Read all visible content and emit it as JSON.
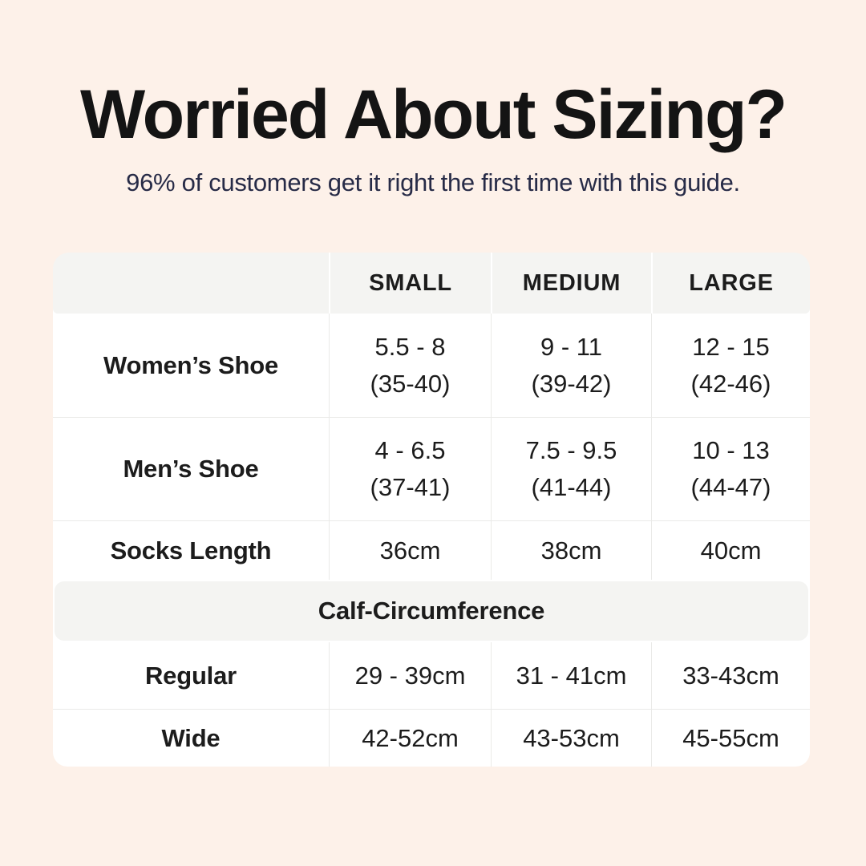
{
  "header": {
    "title": "Worried About Sizing?",
    "subtitle": "96% of customers get it right the first time with this guide."
  },
  "colors": {
    "background": "#fdf1e9",
    "card": "#ffffff",
    "header_band": "#f4f4f2",
    "divider": "#eaeae8",
    "title_text": "#141414",
    "subtitle_text": "#272b47",
    "table_text": "#1c1c1c"
  },
  "table": {
    "columns": [
      "SMALL",
      "MEDIUM",
      "LARGE"
    ],
    "shoe_rows": [
      {
        "label": "Women’s Shoe",
        "small": {
          "line1": "5.5 - 8",
          "line2": "(35-40)"
        },
        "medium": {
          "line1": "9 - 11",
          "line2": "(39-42)"
        },
        "large": {
          "line1": "12 - 15",
          "line2": "(42-46)"
        }
      },
      {
        "label": "Men’s Shoe",
        "small": {
          "line1": "4 - 6.5",
          "line2": "(37-41)"
        },
        "medium": {
          "line1": "7.5 - 9.5",
          "line2": "(41-44)"
        },
        "large": {
          "line1": "10 - 13",
          "line2": "(44-47)"
        }
      }
    ],
    "socks_row": {
      "label": "Socks Length",
      "small": "36cm",
      "medium": "38cm",
      "large": "40cm"
    },
    "section_header": "Calf-Circumference",
    "calf_rows": [
      {
        "label": "Regular",
        "small": "29 - 39cm",
        "medium": "31 - 41cm",
        "large": "33-43cm"
      },
      {
        "label": "Wide",
        "small": "42-52cm",
        "medium": "43-53cm",
        "large": "45-55cm"
      }
    ]
  }
}
